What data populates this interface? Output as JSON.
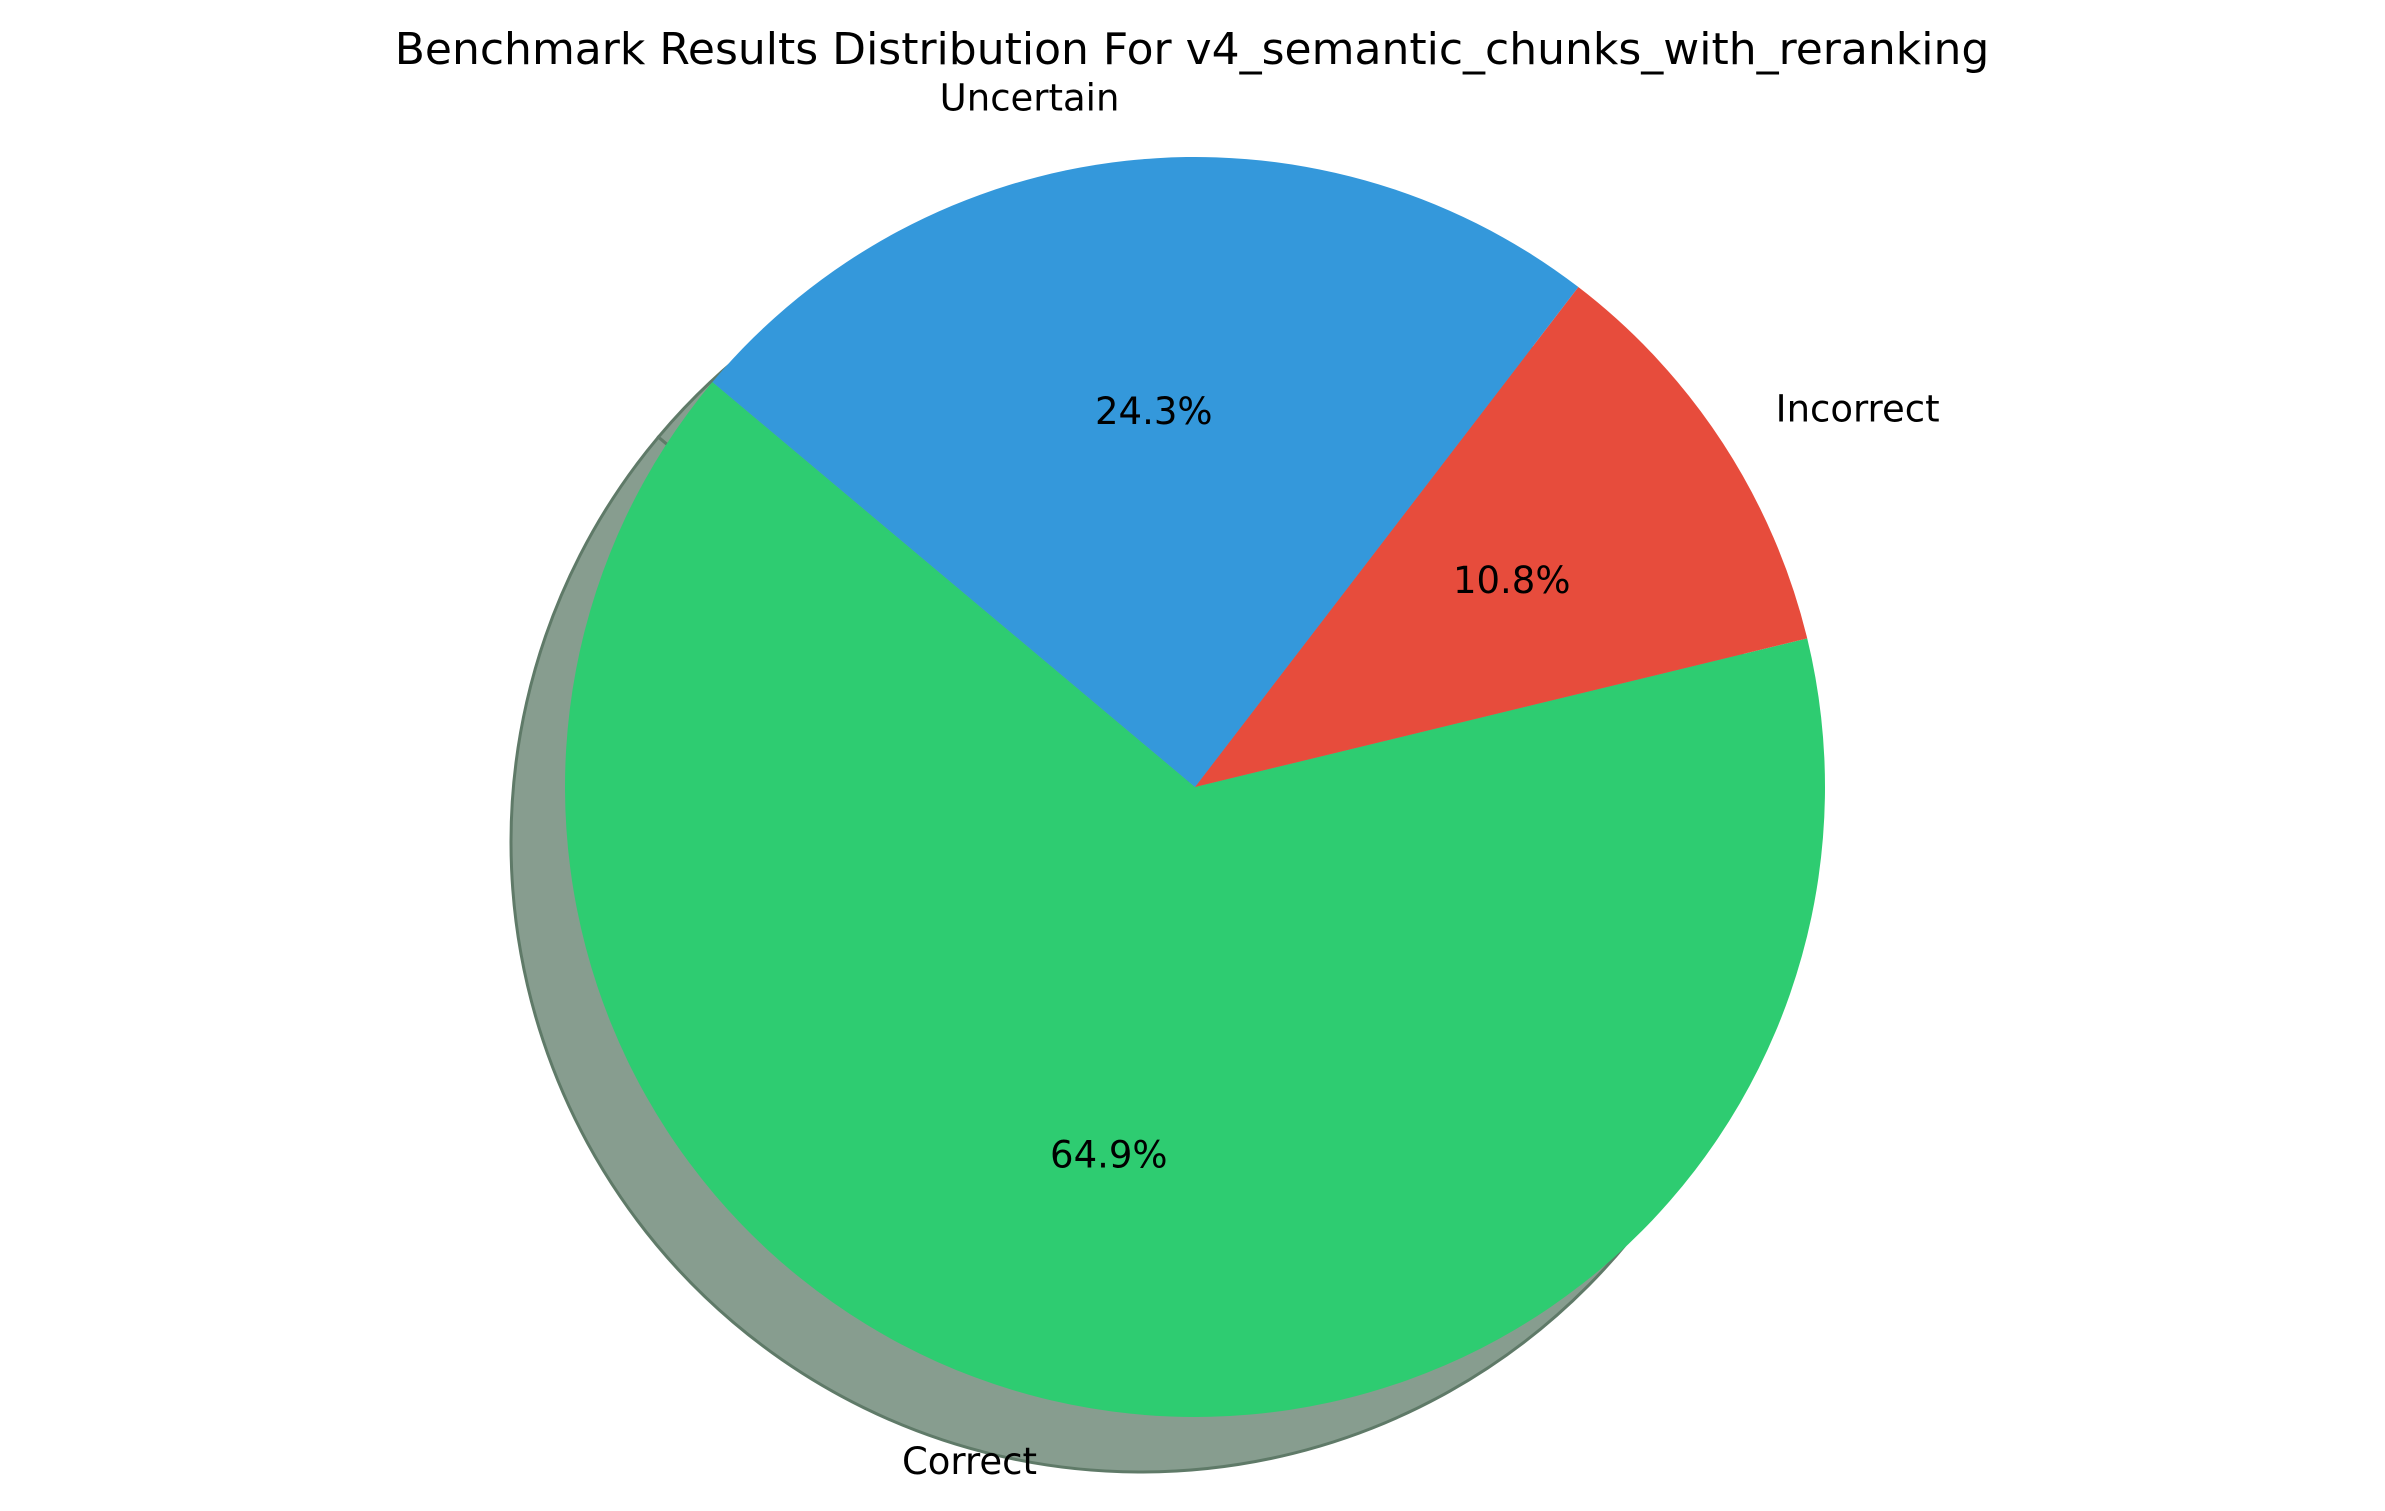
{
  "chart_data": {
    "type": "pie",
    "title": "Benchmark Results Distribution For v4_semantic_chunks_with_reranking",
    "labels": [
      "Correct",
      "Incorrect",
      "Uncertain"
    ],
    "values": [
      64.9,
      10.8,
      24.3
    ],
    "value_labels": [
      "64.9%",
      "10.8%",
      "24.3%"
    ],
    "colors": [
      "#2ecc71",
      "#e74c3c",
      "#3498db"
    ],
    "start_angle_deg": 140,
    "direction": "counterclockwise",
    "shadow": true,
    "explode": [
      0,
      0,
      0
    ],
    "legend": "none"
  }
}
